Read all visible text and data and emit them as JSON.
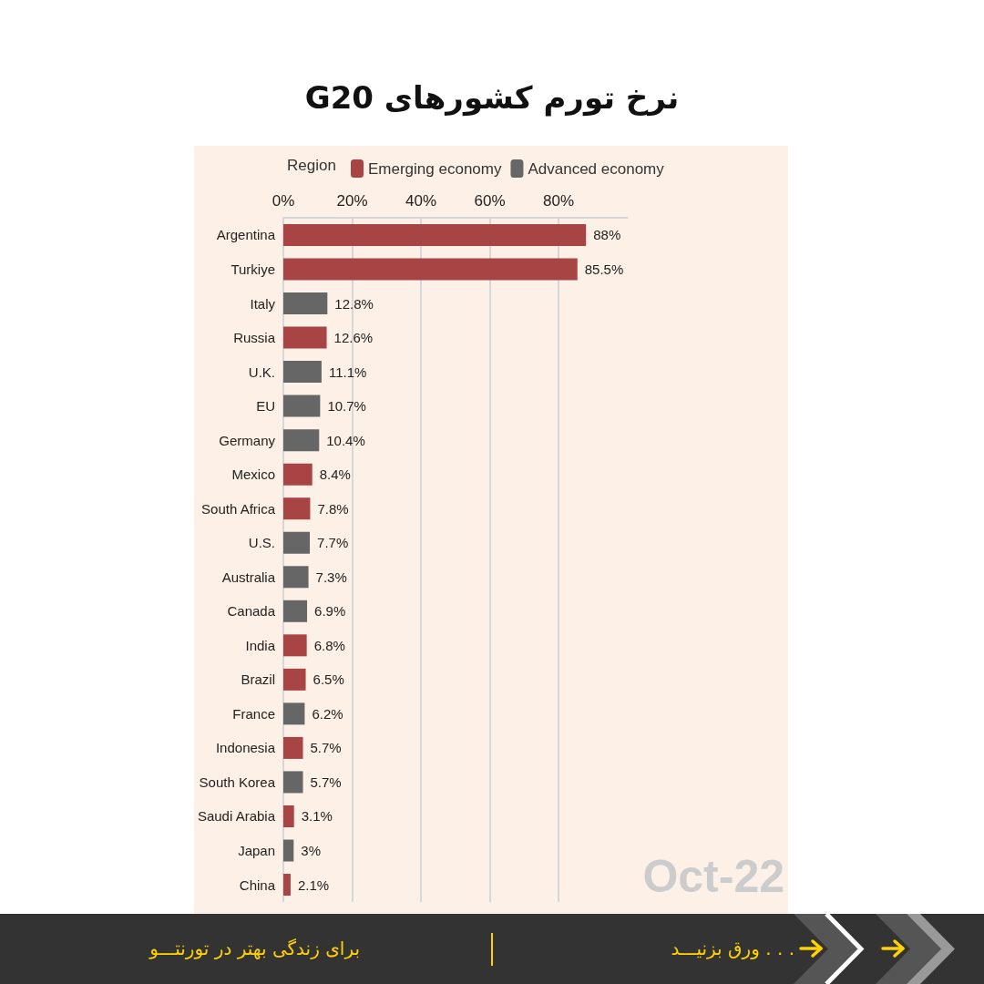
{
  "chart_data": {
    "type": "bar",
    "orientation": "horizontal",
    "title": "نرخ تورم کشورهای G20",
    "legend_title": "Region",
    "legend": "top",
    "categories": [
      "Argentina",
      "Turkiye",
      "Italy",
      "Russia",
      "U.K.",
      "EU",
      "Germany",
      "Mexico",
      "South Africa",
      "U.S.",
      "Australia",
      "Canada",
      "India",
      "Brazil",
      "France",
      "Indonesia",
      "South Korea",
      "Saudi Arabia",
      "Japan",
      "China"
    ],
    "series": [
      {
        "name": "Emerging economy",
        "color": "#a84444",
        "values": [
          88,
          85.5,
          null,
          12.6,
          null,
          null,
          null,
          8.4,
          7.8,
          null,
          null,
          null,
          6.8,
          6.5,
          null,
          5.7,
          null,
          3.1,
          null,
          2.1
        ],
        "value_labels": [
          "88%",
          "85.5%",
          null,
          "12.6%",
          null,
          null,
          null,
          "8.4%",
          "7.8%",
          null,
          null,
          null,
          "6.8%",
          "6.5%",
          null,
          "5.7%",
          null,
          "3.1%",
          null,
          "2.1%"
        ]
      },
      {
        "name": "Advanced economy",
        "color": "#666666",
        "values": [
          null,
          null,
          12.8,
          null,
          11.1,
          10.7,
          10.4,
          null,
          null,
          7.7,
          7.3,
          6.9,
          null,
          null,
          6.2,
          null,
          5.7,
          null,
          3,
          null
        ],
        "value_labels": [
          null,
          null,
          "12.8%",
          null,
          "11.1%",
          "10.7%",
          "10.4%",
          null,
          null,
          "7.7%",
          "7.3%",
          "6.9%",
          null,
          null,
          "6.2%",
          null,
          "5.7%",
          null,
          "3%",
          null
        ]
      }
    ],
    "xlim": [
      0,
      100
    ],
    "xticks": [
      {
        "value": 0,
        "label": "0%"
      },
      {
        "value": 20,
        "label": "20%"
      },
      {
        "value": 40,
        "label": "40%"
      },
      {
        "value": 60,
        "label": "60%"
      },
      {
        "value": 80,
        "label": "80%"
      }
    ],
    "grid": "x",
    "annotations": [
      "Oct-22",
      ". . . ورق بزنیـــد",
      "برای زندگی بهتر در تورنتـــو"
    ]
  }
}
